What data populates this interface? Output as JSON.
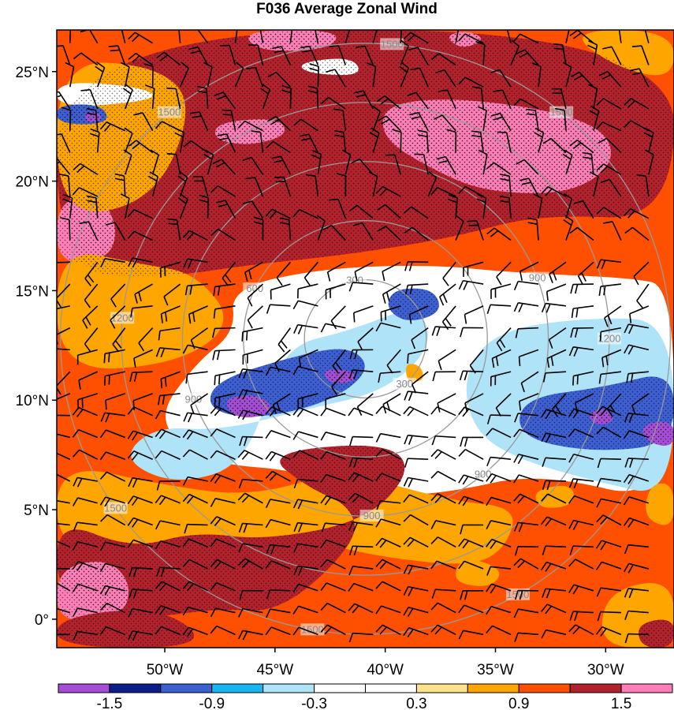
{
  "title": "F036 Average Zonal Wind",
  "map": {
    "lat_range": [
      -1.3,
      26.9
    ],
    "lon_range": [
      -54.9,
      -26.9
    ],
    "lat_ticks": [
      {
        "value": 25,
        "label": "25°N"
      },
      {
        "value": 20,
        "label": "20°N"
      },
      {
        "value": 15,
        "label": "15°N"
      },
      {
        "value": 10,
        "label": "10°N"
      },
      {
        "value": 5,
        "label": "5°N"
      },
      {
        "value": 0,
        "label": "0°"
      }
    ],
    "lon_ticks": [
      {
        "value": -50,
        "label": "50°W"
      },
      {
        "value": -45,
        "label": "45°W"
      },
      {
        "value": -40,
        "label": "40°W"
      },
      {
        "value": -35,
        "label": "35°W"
      },
      {
        "value": -30,
        "label": "30°W"
      }
    ],
    "range_rings": {
      "center": {
        "lat": 12.8,
        "lon": -40.9
      },
      "radii_km": [
        300,
        600,
        900,
        1200,
        1500
      ],
      "labels": [
        {
          "text": "300",
          "ring_km": 300,
          "bearing_deg": 350
        },
        {
          "text": "300",
          "ring_km": 300,
          "bearing_deg": 140
        },
        {
          "text": "600",
          "ring_km": 600,
          "bearing_deg": 295
        },
        {
          "text": "900",
          "ring_km": 900,
          "bearing_deg": 250
        },
        {
          "text": "900",
          "ring_km": 900,
          "bearing_deg": 70
        },
        {
          "text": "900",
          "ring_km": 900,
          "bearing_deg": 140
        },
        {
          "text": "900",
          "ring_km": 900,
          "bearing_deg": 178
        },
        {
          "text": "1200",
          "ring_km": 1200,
          "bearing_deg": 275
        },
        {
          "text": "1200",
          "ring_km": 1200,
          "bearing_deg": 90
        },
        {
          "text": "1500",
          "ring_km": 1500,
          "bearing_deg": 5
        },
        {
          "text": "1500",
          "ring_km": 1500,
          "bearing_deg": 40
        },
        {
          "text": "1500",
          "ring_km": 1500,
          "bearing_deg": 320
        },
        {
          "text": "1500",
          "ring_km": 1500,
          "bearing_deg": 235
        },
        {
          "text": "1500",
          "ring_km": 1500,
          "bearing_deg": 150
        },
        {
          "text": "1500",
          "ring_km": 1500,
          "bearing_deg": 190
        }
      ],
      "ring_color": "#999999"
    },
    "field_regions": [
      {
        "level": 1.2,
        "points": [
          [
            -54.9,
            26.9
          ],
          [
            -26.9,
            26.9
          ],
          [
            -26.9,
            18.2
          ],
          [
            -33,
            18.5
          ],
          [
            -37,
            17.4
          ],
          [
            -42,
            16.6
          ],
          [
            -46,
            16.2
          ],
          [
            -50,
            15.6
          ],
          [
            -54.9,
            15.8
          ]
        ]
      },
      {
        "level": 1.8,
        "points": [
          [
            -40,
            23.6
          ],
          [
            -36,
            23.8
          ],
          [
            -30.5,
            22.8
          ],
          [
            -29.4,
            21
          ],
          [
            -31.5,
            19.4
          ],
          [
            -35.5,
            19.5
          ],
          [
            -38,
            20.6
          ],
          [
            -40.2,
            22
          ]
        ]
      },
      {
        "level": 1.8,
        "points": [
          [
            -47.6,
            22.7
          ],
          [
            -44.8,
            22.9
          ],
          [
            -44.4,
            22.1
          ],
          [
            -46.2,
            21.6
          ],
          [
            -47.8,
            21.9
          ]
        ]
      },
      {
        "level": 1.8,
        "points": [
          [
            -54.9,
            19.1
          ],
          [
            -52.9,
            19.4
          ],
          [
            -52.1,
            17.8
          ],
          [
            -52.6,
            16.4
          ],
          [
            -54.9,
            16.2
          ]
        ]
      },
      {
        "level": 1.8,
        "points": [
          [
            -46.5,
            26.9
          ],
          [
            -42,
            26.9
          ],
          [
            -42.5,
            26
          ],
          [
            -45.8,
            25.9
          ]
        ]
      },
      {
        "level": 1.8,
        "points": [
          [
            -37.3,
            26.6
          ],
          [
            -36.4,
            26.9
          ],
          [
            -35.4,
            26.5
          ],
          [
            -36.5,
            26
          ]
        ]
      },
      {
        "level": 0.6,
        "points": [
          [
            -54.9,
            18.3
          ],
          [
            -50.5,
            19
          ],
          [
            -48.6,
            23.5
          ],
          [
            -50.4,
            25.3
          ],
          [
            -54.9,
            25.5
          ]
        ]
      },
      {
        "level": 0.6,
        "points": [
          [
            -31.8,
            26.9
          ],
          [
            -26.9,
            26.9
          ],
          [
            -26.9,
            24.6
          ],
          [
            -29.6,
            25.2
          ]
        ]
      },
      {
        "level": 0.6,
        "points": [
          [
            -54.9,
            17
          ],
          [
            -51,
            16.2
          ],
          [
            -48.6,
            15.8
          ],
          [
            -46.8,
            13.5
          ],
          [
            -49.5,
            11.6
          ],
          [
            -54.9,
            11.3
          ]
        ]
      },
      {
        "level": 0,
        "points": [
          [
            -47,
            15.1
          ],
          [
            -43,
            16
          ],
          [
            -38,
            16.2
          ],
          [
            -34,
            15.8
          ],
          [
            -29,
            15.6
          ],
          [
            -26.9,
            15.2
          ],
          [
            -26.9,
            5.2
          ],
          [
            -33,
            6.7
          ],
          [
            -37,
            5.8
          ],
          [
            -40,
            5.6
          ],
          [
            -44,
            6.8
          ],
          [
            -48,
            7.1
          ],
          [
            -50.5,
            9
          ],
          [
            -48.6,
            11.7
          ],
          [
            -46.8,
            13.1
          ]
        ]
      },
      {
        "level": 0,
        "points": [
          [
            -54.9,
            24.6
          ],
          [
            -51,
            24.3
          ],
          [
            -50.2,
            23.7
          ],
          [
            -54.9,
            23.3
          ]
        ]
      },
      {
        "level": 0,
        "points": [
          [
            -44,
            25.4
          ],
          [
            -41.5,
            25.7
          ],
          [
            -41,
            24.8
          ],
          [
            -43.5,
            24.9
          ]
        ]
      },
      {
        "level": -0.6,
        "points": [
          [
            -44.8,
            12.4
          ],
          [
            -41.5,
            13.2
          ],
          [
            -38.5,
            14.4
          ],
          [
            -37.8,
            12.5
          ],
          [
            -40,
            10.4
          ],
          [
            -43.5,
            9.6
          ],
          [
            -47.5,
            8.6
          ],
          [
            -50.5,
            8.8
          ],
          [
            -52,
            7.3
          ],
          [
            -49.5,
            6.1
          ],
          [
            -46.2,
            7.1
          ]
        ]
      },
      {
        "level": -0.6,
        "points": [
          [
            -35,
            13.2
          ],
          [
            -30.5,
            13.8
          ],
          [
            -26.9,
            13.6
          ],
          [
            -26.9,
            5.5
          ],
          [
            -30.5,
            6.3
          ],
          [
            -34,
            7.3
          ],
          [
            -36,
            8.6
          ],
          [
            -36.5,
            11.1
          ]
        ]
      },
      {
        "level": -1.2,
        "points": [
          [
            -44.2,
            12
          ],
          [
            -41.6,
            12.5
          ],
          [
            -40.6,
            11.4
          ],
          [
            -42.5,
            9.9
          ],
          [
            -46,
            9.1
          ],
          [
            -48.1,
            9.6
          ],
          [
            -47.7,
            10.9
          ]
        ]
      },
      {
        "level": -1.2,
        "points": [
          [
            -39.6,
            15.1
          ],
          [
            -37.8,
            15.1
          ],
          [
            -37.4,
            14
          ],
          [
            -39,
            13.5
          ],
          [
            -40,
            14.2
          ]
        ]
      },
      {
        "level": -1.2,
        "points": [
          [
            -33.8,
            10.1
          ],
          [
            -30,
            10.6
          ],
          [
            -26.9,
            11.4
          ],
          [
            -26.9,
            8
          ],
          [
            -30.5,
            7.6
          ],
          [
            -34,
            8.3
          ]
        ]
      },
      {
        "level": -1.2,
        "points": [
          [
            -54.9,
            23.5
          ],
          [
            -52.8,
            23.5
          ],
          [
            -52.5,
            22.6
          ],
          [
            -54.9,
            22.6
          ]
        ]
      },
      {
        "level": -1.8,
        "points": [
          [
            -47.4,
            10.1
          ],
          [
            -45.7,
            10.3
          ],
          [
            -44.9,
            9.4
          ],
          [
            -46.8,
            9.1
          ]
        ]
      },
      {
        "level": -1.8,
        "points": [
          [
            -42.9,
            11.4
          ],
          [
            -41.6,
            11.4
          ],
          [
            -41.2,
            10.9
          ],
          [
            -42.5,
            10.7
          ]
        ]
      },
      {
        "level": -1.8,
        "points": [
          [
            -30.9,
            9.3
          ],
          [
            -30.1,
            9.7
          ],
          [
            -29.5,
            9.1
          ],
          [
            -30.3,
            8.8
          ]
        ]
      },
      {
        "level": -1.8,
        "points": [
          [
            -28.4,
            8.9
          ],
          [
            -26.9,
            9.1
          ],
          [
            -26.9,
            7.8
          ],
          [
            -28.2,
            8.1
          ]
        ]
      },
      {
        "level": -1.8,
        "points": [
          [
            -53.6,
            23.2
          ],
          [
            -52.9,
            23.1
          ],
          [
            -52.9,
            22.7
          ],
          [
            -53.6,
            22.7
          ]
        ]
      },
      {
        "level": 0.6,
        "points": [
          [
            -39.1,
            11.7
          ],
          [
            -38.4,
            11.6
          ],
          [
            -38.2,
            10.9
          ],
          [
            -39,
            10.8
          ]
        ]
      },
      {
        "level": 0.6,
        "points": [
          [
            -54.9,
            7.2
          ],
          [
            -50,
            6.1
          ],
          [
            -46,
            5.6
          ],
          [
            -42,
            6.8
          ],
          [
            -37,
            5.4
          ],
          [
            -34,
            5.1
          ],
          [
            -34.5,
            3.3
          ],
          [
            -36,
            2.4
          ],
          [
            -40,
            2.8
          ],
          [
            -43,
            3.5
          ],
          [
            -47,
            2.5
          ],
          [
            -50,
            2.8
          ],
          [
            -54.9,
            3
          ]
        ]
      },
      {
        "level": 1.2,
        "points": [
          [
            -45.5,
            7.6
          ],
          [
            -40.1,
            8.1
          ],
          [
            -38.7,
            6.9
          ],
          [
            -40.8,
            4.5
          ],
          [
            -45.5,
            3.6
          ],
          [
            -48.6,
            4
          ],
          [
            -51.5,
            3.2
          ],
          [
            -54.9,
            4.6
          ],
          [
            -54.9,
            0.9
          ],
          [
            -51,
            0
          ],
          [
            -47.6,
            0.5
          ],
          [
            -44.7,
            0.3
          ],
          [
            -41.2,
            3.6
          ],
          [
            -41.6,
            5.2
          ],
          [
            -43.5,
            6
          ]
        ]
      },
      {
        "level": 1.8,
        "points": [
          [
            -54.9,
            2.3
          ],
          [
            -52.6,
            2.8
          ],
          [
            -51.5,
            1.6
          ],
          [
            -51.9,
            0.1
          ],
          [
            -54.9,
            -0.2
          ]
        ]
      },
      {
        "level": 1.2,
        "points": [
          [
            -54.9,
            0.1
          ],
          [
            -50.1,
            0.6
          ],
          [
            -47.8,
            -1.3
          ],
          [
            -54.9,
            -1.3
          ]
        ]
      },
      {
        "level": 0.6,
        "points": [
          [
            -28,
            6.2
          ],
          [
            -26.9,
            6.2
          ],
          [
            -26.9,
            4.1
          ],
          [
            -28.3,
            4.6
          ]
        ]
      },
      {
        "level": 0.6,
        "points": [
          [
            -30,
            1.3
          ],
          [
            -26.9,
            1.9
          ],
          [
            -26.9,
            -1.3
          ],
          [
            -30.3,
            -1.3
          ]
        ]
      },
      {
        "level": 1.2,
        "points": [
          [
            -28.6,
            -0.2
          ],
          [
            -26.9,
            0.1
          ],
          [
            -26.9,
            -1.3
          ],
          [
            -28.4,
            -1.3
          ]
        ]
      },
      {
        "level": 0.6,
        "points": [
          [
            -36.5,
            2.9
          ],
          [
            -34.6,
            2.3
          ],
          [
            -35.2,
            1.4
          ],
          [
            -37,
            1.7
          ]
        ]
      },
      {
        "level": 0.6,
        "points": [
          [
            -33.3,
            5.9
          ],
          [
            -31.5,
            6.2
          ],
          [
            -31.4,
            5.2
          ],
          [
            -33,
            5
          ]
        ]
      }
    ],
    "wind_barbs": {
      "lat_step": 1.0,
      "lon_step": 1.25
    }
  },
  "colorbar": {
    "bounds": [
      -1.8,
      1.8
    ],
    "levels": [
      -1.5,
      -1.2,
      -0.9,
      -0.6,
      -0.3,
      0,
      0.3,
      0.6,
      0.9,
      1.2,
      1.5
    ],
    "colors": [
      "#a64dd6",
      "#0b1e8a",
      "#3d5fd1",
      "#17b6f2",
      "#afe3f7",
      "#ffffff",
      "#ffffff",
      "#ffe28a",
      "#ffa500",
      "#ff4f00",
      "#b2222d",
      "#ff7eb7"
    ],
    "tick_labels": [
      {
        "value": -1.5,
        "label": "-1.5"
      },
      {
        "value": -0.9,
        "label": "-0.9"
      },
      {
        "value": -0.3,
        "label": "-0.3"
      },
      {
        "value": 0.3,
        "label": "0.3"
      },
      {
        "value": 0.9,
        "label": "0.9"
      },
      {
        "value": 1.5,
        "label": "1.5"
      }
    ]
  }
}
